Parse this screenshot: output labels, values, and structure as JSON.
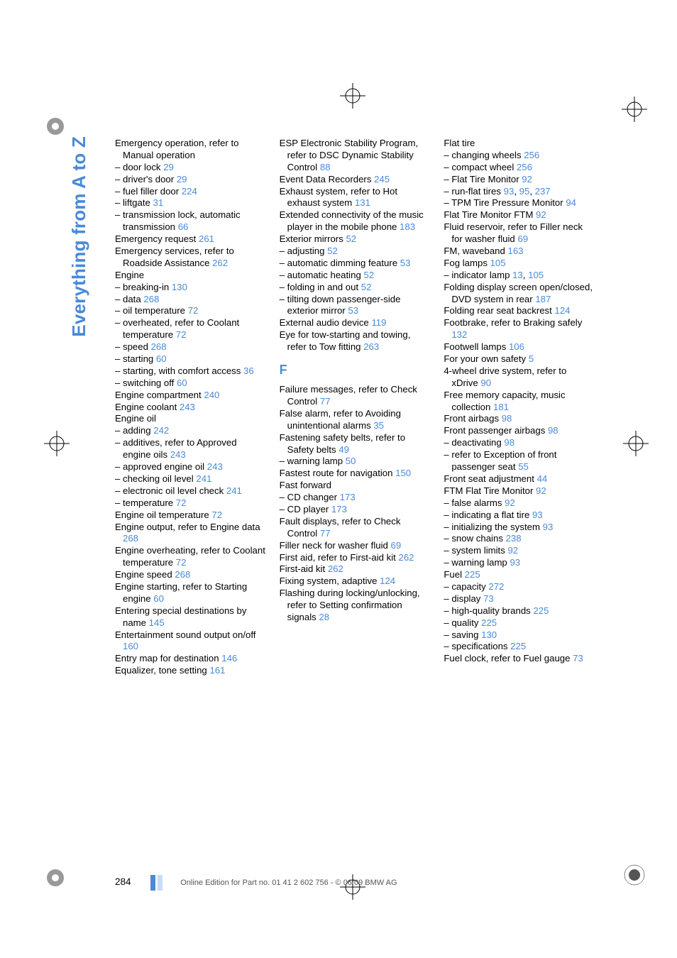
{
  "sideTab": "Everything from A to Z",
  "pageNumber": "284",
  "footerText": "Online Edition for Part no. 01 41 2 602 756 - © 06/09 BMW AG",
  "linkColor": "#4a8ad8",
  "sectionLetter": "F",
  "col1": [
    "Emergency operation, refer to Manual operation",
    "– door lock <29>",
    "– driver's door <29>",
    "– fuel filler door <224>",
    "– liftgate <31>",
    "– transmission lock, automatic transmission <66>",
    "Emergency request <261>",
    "Emergency services, refer to Roadside Assistance <262>",
    "Engine",
    "– breaking-in <130>",
    "– data <268>",
    "– oil temperature <72>",
    "– overheated, refer to Coolant temperature <72>",
    "– speed <268>",
    "– starting <60>",
    "– starting, with comfort access <36>",
    "– switching off <60>",
    "Engine compartment <240>",
    "Engine coolant <243>",
    "Engine oil",
    "– adding <242>",
    "– additives, refer to Approved engine oils <243>",
    "– approved engine oil <243>",
    "– checking oil level <241>",
    "– electronic oil level check <241>",
    "– temperature <72>",
    "Engine oil temperature <72>",
    "Engine output, refer to Engine data <268>",
    "Engine overheating, refer to Coolant temperature <72>",
    "Engine speed <268>",
    "Engine starting, refer to Starting engine <60>",
    "Entering special destinations by name <145>",
    "Entertainment sound output on/off <160>",
    "Entry map for destination <146>",
    "Equalizer, tone setting <161>"
  ],
  "col2a": [
    "ESP Electronic Stability Program, refer to DSC Dynamic Stability Control <88>",
    "Event Data Recorders <245>",
    "Exhaust system, refer to Hot exhaust system <131>",
    "Extended connectivity of the music player in the mobile phone <183>",
    "Exterior mirrors <52>",
    "– adjusting <52>",
    "– automatic dimming feature <53>",
    "– automatic heating <52>",
    "– folding in and out <52>",
    "– tilting down passenger-side exterior mirror <53>",
    "External audio device <119>",
    "Eye for tow-starting and towing, refer to Tow fitting <263>"
  ],
  "col2b": [
    "Failure messages, refer to Check Control <77>",
    "False alarm, refer to Avoiding unintentional alarms <35>",
    "Fastening safety belts, refer to Safety belts <49>",
    "– warning lamp <50>",
    "Fastest route for navigation <150>",
    "Fast forward",
    "– CD changer <173>",
    "– CD player <173>",
    "Fault displays, refer to Check Control <77>",
    "Filler neck for washer fluid <69>",
    "First aid, refer to First-aid kit <262>",
    "First-aid kit <262>",
    "Fixing system, adaptive <124>",
    "Flashing during locking/unlocking, refer to Setting confirmation signals <28>"
  ],
  "col3": [
    "Flat tire",
    "– changing wheels <256>",
    "– compact wheel <256>",
    "– Flat Tire Monitor <92>",
    "– run-flat tires <93>, <95>, <237>",
    "– TPM Tire Pressure Monitor <94>",
    "Flat Tire Monitor FTM <92>",
    "Fluid reservoir, refer to Filler neck for washer fluid <69>",
    "FM, waveband <163>",
    "Fog lamps <105>",
    "– indicator lamp <13>, <105>",
    "Folding display screen open/closed, DVD system in rear <187>",
    "Folding rear seat backrest <124>",
    "Footbrake, refer to Braking safely <132>",
    "Footwell lamps <106>",
    "For your own safety <5>",
    "4-wheel drive system, refer to xDrive <90>",
    "Free memory capacity, music collection <181>",
    "Front airbags <98>",
    "Front passenger airbags <98>",
    "– deactivating <98>",
    "– refer to Exception of front passenger seat <55>",
    "Front seat adjustment <44>",
    "FTM Flat Tire Monitor <92>",
    "– false alarms <92>",
    "– indicating a flat tire <93>",
    "– initializing the system <93>",
    "– snow chains <238>",
    "– system limits <92>",
    "– warning lamp <93>",
    "Fuel <225>",
    "– capacity <272>",
    "– display <73>",
    "– high-quality brands <225>",
    "– quality <225>",
    "– saving <130>",
    "– specifications <225>",
    "Fuel clock, refer to Fuel gauge <73>"
  ]
}
